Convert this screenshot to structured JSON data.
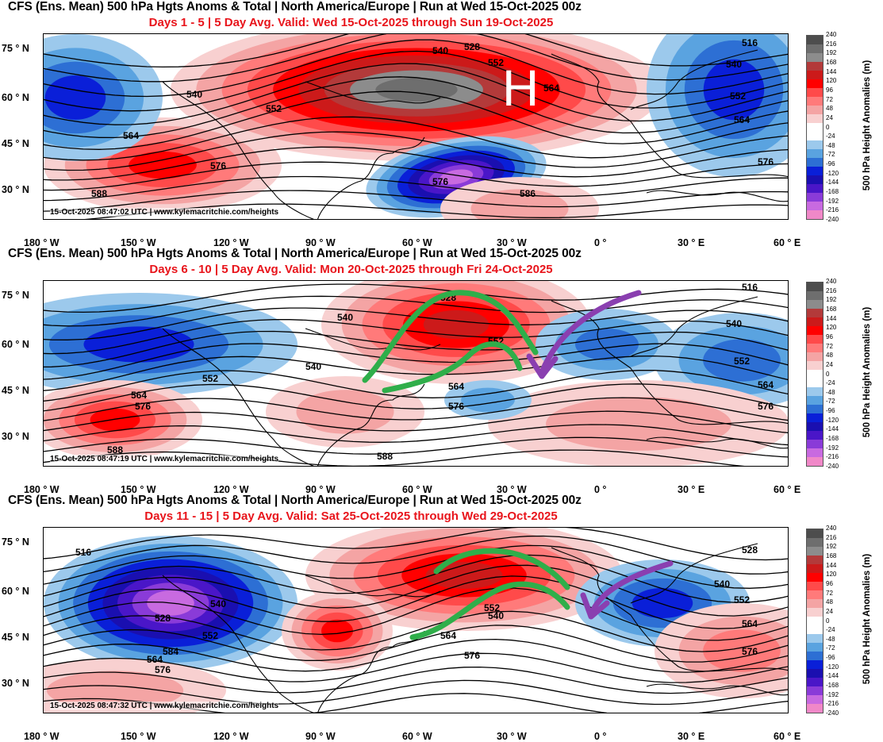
{
  "panels": [
    {
      "title": "CFS (Ens. Mean) 500 hPa Hgts Anoms & Total  | North America/Europe | Run at Wed 15-Oct-2025 00z",
      "subtitle": "Days 1 - 5 | 5 Day Avg. Valid: Wed 15-Oct-2025 through Sun 19-Oct-2025",
      "credit": "15-Oct-2025 08:47:02 UTC | www.kylemacritchie.com/heights",
      "contour_labels": [
        "540",
        "552",
        "564",
        "576",
        "588",
        "528",
        "516",
        "540",
        "552",
        "564",
        "576",
        "540",
        "552",
        "564",
        "576",
        "586"
      ],
      "annotation": "H"
    },
    {
      "title": "CFS (Ens. Mean) 500 hPa Hgts Anoms & Total  | North America/Europe | Run at Wed 15-Oct-2025 00z",
      "subtitle": "Days 6 - 10 | 5 Day Avg. Valid: Mon 20-Oct-2025 through Fri 24-Oct-2025",
      "credit": "15-Oct-2025 08:47:19 UTC | www.kylemacritchie.com/heights",
      "contour_labels": [
        "540",
        "552",
        "564",
        "576",
        "588",
        "528",
        "516",
        "540",
        "552",
        "564",
        "576",
        "540",
        "552",
        "564",
        "576",
        "588"
      ],
      "annotation": ""
    },
    {
      "title": "CFS (Ens. Mean) 500 hPa Hgts Anoms & Total  | North America/Europe | Run at Wed 15-Oct-2025 00z",
      "subtitle": "Days 11 - 15 | 5 Day Avg. Valid: Sat 25-Oct-2025 through Wed 29-Oct-2025",
      "credit": "15-Oct-2025 08:47:32 UTC | www.kylemacritchie.com/heights",
      "contour_labels": [
        "528",
        "540",
        "552",
        "564",
        "576",
        "584",
        "516",
        "528",
        "540",
        "552",
        "564",
        "576",
        "552",
        "564",
        "576",
        "540"
      ],
      "annotation": ""
    }
  ],
  "lat_labels": [
    "75 ° N",
    "60 ° N",
    "45 ° N",
    "30 ° N"
  ],
  "lon_labels": [
    "180 ° W",
    "150 ° W",
    "120 ° W",
    "90 ° W",
    "60 ° W",
    "30 ° W",
    "0 °",
    "30 ° E",
    "60 ° E"
  ],
  "colorbar": {
    "label": "500 hPa Height Anomalies (m)",
    "ticks": [
      "240",
      "216",
      "192",
      "168",
      "144",
      "120",
      "96",
      "72",
      "48",
      "24",
      "0",
      "-24",
      "-48",
      "-72",
      "-96",
      "-120",
      "-144",
      "-168",
      "-192",
      "-216",
      "-240"
    ],
    "colors": [
      "#4d4d4d",
      "#6e6e6e",
      "#8c8c8c",
      "#b33a3a",
      "#cc1a1a",
      "#ff0000",
      "#ff4a4a",
      "#ff7a7a",
      "#f4a4a4",
      "#f8d0d0",
      "#ffffff",
      "#ffffff",
      "#9cc9ec",
      "#5aa3e0",
      "#2d6fd4",
      "#0a1fd8",
      "#1a0fb0",
      "#4a16c8",
      "#8a3bd8",
      "#c86ae0",
      "#f088c8"
    ]
  },
  "colors": {
    "title": "#000000",
    "subtitle": "#e8141b",
    "trough_arrow": "#8a3fb0",
    "ridge_arcs": "#2fae4a"
  }
}
